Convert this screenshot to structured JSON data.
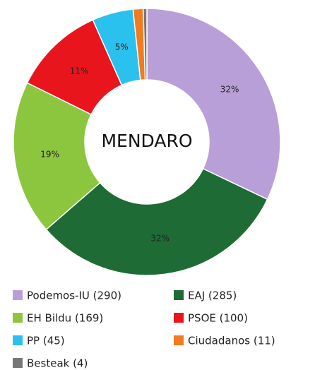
{
  "chart_data": {
    "type": "donut",
    "title": "MENDARO",
    "categories": [
      "Podemos-IU (290)",
      "EAJ (285)",
      "EH Bildu (169)",
      "PSOE (100)",
      "PP (45)",
      "Ciudadanos (11)",
      "Besteak (4)"
    ],
    "values": [
      290,
      285,
      169,
      100,
      45,
      11,
      4
    ],
    "value_labels": [
      "32%",
      "32%",
      "19%",
      "11%",
      "5%",
      null,
      null
    ],
    "colors": [
      "#b99fd8",
      "#1e6b35",
      "#8cc63f",
      "#e8151d",
      "#2bc1ee",
      "#f47a20",
      "#777777"
    ]
  }
}
